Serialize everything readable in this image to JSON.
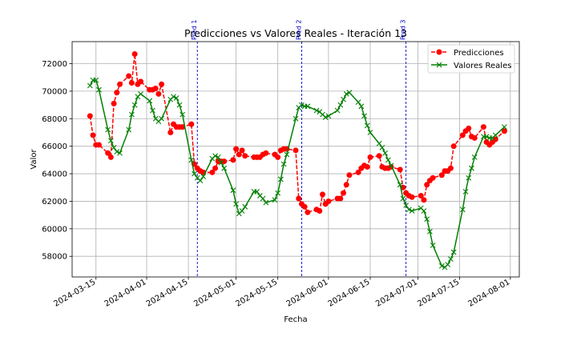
{
  "chart_data": {
    "type": "line",
    "title": "Predicciones vs Valores Reales - Iteración 13",
    "xlabel": "Fecha",
    "ylabel": "Valor",
    "x_axis": "date",
    "xlim": [
      "2024-03-07",
      "2024-08-04"
    ],
    "ylim": [
      56500,
      73600
    ],
    "grid": true,
    "legend_position": "top-right",
    "x_ticks": [
      "2024-03-15",
      "2024-04-01",
      "2024-04-15",
      "2024-05-01",
      "2024-05-15",
      "2024-06-01",
      "2024-06-15",
      "2024-07-01",
      "2024-07-15",
      "2024-08-01"
    ],
    "y_ticks": [
      58000,
      60000,
      62000,
      64000,
      66000,
      68000,
      70000,
      72000
    ],
    "vlines": [
      {
        "x": "2024-04-18",
        "label": "Pred 1"
      },
      {
        "x": "2024-05-23",
        "label": "Pred 2"
      },
      {
        "x": "2024-06-27",
        "label": "Pred 3"
      }
    ],
    "series": [
      {
        "name": "Predicciones",
        "color": "#ff0000",
        "marker": "circle",
        "linestyle": "dashed",
        "points": [
          [
            "2024-03-13",
            68200
          ],
          [
            "2024-03-14",
            66800
          ],
          [
            "2024-03-15",
            66100
          ],
          [
            "2024-03-16",
            66100
          ],
          [
            "2024-03-19",
            65500
          ],
          [
            "2024-03-20",
            65200
          ],
          [
            "2024-03-21",
            69100
          ],
          [
            "2024-03-22",
            69900
          ],
          [
            "2024-03-23",
            70500
          ],
          [
            "2024-03-26",
            71100
          ],
          [
            "2024-03-27",
            70600
          ],
          [
            "2024-03-28",
            72700
          ],
          [
            "2024-03-29",
            70500
          ],
          [
            "2024-03-30",
            70700
          ],
          [
            "2024-04-02",
            70100
          ],
          [
            "2024-04-03",
            70100
          ],
          [
            "2024-04-04",
            70200
          ],
          [
            "2024-04-05",
            69800
          ],
          [
            "2024-04-06",
            70500
          ],
          [
            "2024-04-09",
            67000
          ],
          [
            "2024-04-10",
            67600
          ],
          [
            "2024-04-11",
            67400
          ],
          [
            "2024-04-12",
            67400
          ],
          [
            "2024-04-13",
            67400
          ],
          [
            "2024-04-16",
            67600
          ],
          [
            "2024-04-17",
            64700
          ],
          [
            "2024-04-18",
            64400
          ],
          [
            "2024-04-19",
            64200
          ],
          [
            "2024-04-20",
            64100
          ],
          [
            "2024-04-23",
            64100
          ],
          [
            "2024-04-24",
            64400
          ],
          [
            "2024-04-25",
            64900
          ],
          [
            "2024-04-26",
            64900
          ],
          [
            "2024-04-27",
            64900
          ],
          [
            "2024-04-30",
            65000
          ],
          [
            "2024-05-01",
            65800
          ],
          [
            "2024-05-02",
            65400
          ],
          [
            "2024-05-03",
            65700
          ],
          [
            "2024-05-04",
            65300
          ],
          [
            "2024-05-07",
            65200
          ],
          [
            "2024-05-08",
            65200
          ],
          [
            "2024-05-09",
            65200
          ],
          [
            "2024-05-10",
            65400
          ],
          [
            "2024-05-11",
            65500
          ],
          [
            "2024-05-14",
            65400
          ],
          [
            "2024-05-15",
            65200
          ],
          [
            "2024-05-16",
            65700
          ],
          [
            "2024-05-17",
            65800
          ],
          [
            "2024-05-18",
            65800
          ],
          [
            "2024-05-21",
            65700
          ],
          [
            "2024-05-22",
            62200
          ],
          [
            "2024-05-23",
            61800
          ],
          [
            "2024-05-24",
            61600
          ],
          [
            "2024-05-25",
            61200
          ],
          [
            "2024-05-28",
            61400
          ],
          [
            "2024-05-29",
            61300
          ],
          [
            "2024-05-30",
            62500
          ],
          [
            "2024-05-31",
            61800
          ],
          [
            "2024-06-01",
            62000
          ],
          [
            "2024-06-04",
            62200
          ],
          [
            "2024-06-05",
            62200
          ],
          [
            "2024-06-06",
            62600
          ],
          [
            "2024-06-07",
            63200
          ],
          [
            "2024-06-08",
            63900
          ],
          [
            "2024-06-11",
            64100
          ],
          [
            "2024-06-12",
            64400
          ],
          [
            "2024-06-13",
            64600
          ],
          [
            "2024-06-14",
            64500
          ],
          [
            "2024-06-15",
            65200
          ],
          [
            "2024-06-18",
            65300
          ],
          [
            "2024-06-19",
            64500
          ],
          [
            "2024-06-20",
            64400
          ],
          [
            "2024-06-21",
            64400
          ],
          [
            "2024-06-22",
            64500
          ],
          [
            "2024-06-25",
            64300
          ],
          [
            "2024-06-26",
            63000
          ],
          [
            "2024-06-27",
            62600
          ],
          [
            "2024-06-28",
            62400
          ],
          [
            "2024-06-29",
            62300
          ],
          [
            "2024-07-02",
            62400
          ],
          [
            "2024-07-03",
            62100
          ],
          [
            "2024-07-04",
            63200
          ],
          [
            "2024-07-05",
            63500
          ],
          [
            "2024-07-06",
            63700
          ],
          [
            "2024-07-09",
            63900
          ],
          [
            "2024-07-10",
            64200
          ],
          [
            "2024-07-11",
            64200
          ],
          [
            "2024-07-12",
            64400
          ],
          [
            "2024-07-13",
            66000
          ],
          [
            "2024-07-16",
            66800
          ],
          [
            "2024-07-17",
            67100
          ],
          [
            "2024-07-18",
            67300
          ],
          [
            "2024-07-19",
            66700
          ],
          [
            "2024-07-20",
            66600
          ],
          [
            "2024-07-23",
            67400
          ],
          [
            "2024-07-24",
            66300
          ],
          [
            "2024-07-25",
            66100
          ],
          [
            "2024-07-26",
            66300
          ],
          [
            "2024-07-27",
            66500
          ],
          [
            "2024-07-30",
            67100
          ]
        ]
      },
      {
        "name": "Valores Reales",
        "color": "#008000",
        "marker": "x",
        "linestyle": "solid",
        "points": [
          [
            "2024-03-13",
            70400
          ],
          [
            "2024-03-14",
            70800
          ],
          [
            "2024-03-15",
            70800
          ],
          [
            "2024-03-16",
            70100
          ],
          [
            "2024-03-19",
            67200
          ],
          [
            "2024-03-20",
            66400
          ],
          [
            "2024-03-21",
            65900
          ],
          [
            "2024-03-22",
            65600
          ],
          [
            "2024-03-23",
            65500
          ],
          [
            "2024-03-26",
            67200
          ],
          [
            "2024-03-27",
            68300
          ],
          [
            "2024-03-28",
            69000
          ],
          [
            "2024-03-29",
            69600
          ],
          [
            "2024-03-30",
            69800
          ],
          [
            "2024-04-02",
            69300
          ],
          [
            "2024-04-03",
            68600
          ],
          [
            "2024-04-04",
            68000
          ],
          [
            "2024-04-05",
            67800
          ],
          [
            "2024-04-06",
            68000
          ],
          [
            "2024-04-09",
            69400
          ],
          [
            "2024-04-10",
            69600
          ],
          [
            "2024-04-11",
            69500
          ],
          [
            "2024-04-12",
            69000
          ],
          [
            "2024-04-13",
            68300
          ],
          [
            "2024-04-16",
            65000
          ],
          [
            "2024-04-17",
            64000
          ],
          [
            "2024-04-18",
            63700
          ],
          [
            "2024-04-19",
            63500
          ],
          [
            "2024-04-20",
            63800
          ],
          [
            "2024-04-23",
            65100
          ],
          [
            "2024-04-24",
            65300
          ],
          [
            "2024-04-25",
            65200
          ],
          [
            "2024-04-26",
            64800
          ],
          [
            "2024-04-27",
            64400
          ],
          [
            "2024-04-30",
            62800
          ],
          [
            "2024-05-01",
            61800
          ],
          [
            "2024-05-02",
            61100
          ],
          [
            "2024-05-03",
            61300
          ],
          [
            "2024-05-04",
            61600
          ],
          [
            "2024-05-07",
            62700
          ],
          [
            "2024-05-08",
            62700
          ],
          [
            "2024-05-09",
            62400
          ],
          [
            "2024-05-10",
            62200
          ],
          [
            "2024-05-11",
            61900
          ],
          [
            "2024-05-14",
            62100
          ],
          [
            "2024-05-15",
            62600
          ],
          [
            "2024-05-16",
            63600
          ],
          [
            "2024-05-17",
            64700
          ],
          [
            "2024-05-18",
            65400
          ],
          [
            "2024-05-21",
            68000
          ],
          [
            "2024-05-22",
            68800
          ],
          [
            "2024-05-23",
            69000
          ],
          [
            "2024-05-24",
            68900
          ],
          [
            "2024-05-25",
            68900
          ],
          [
            "2024-05-28",
            68600
          ],
          [
            "2024-05-29",
            68500
          ],
          [
            "2024-05-30",
            68300
          ],
          [
            "2024-05-31",
            68100
          ],
          [
            "2024-06-01",
            68200
          ],
          [
            "2024-06-04",
            68600
          ],
          [
            "2024-06-05",
            69000
          ],
          [
            "2024-06-06",
            69400
          ],
          [
            "2024-06-07",
            69800
          ],
          [
            "2024-06-08",
            69900
          ],
          [
            "2024-06-11",
            69200
          ],
          [
            "2024-06-12",
            68900
          ],
          [
            "2024-06-13",
            68200
          ],
          [
            "2024-06-14",
            67500
          ],
          [
            "2024-06-15",
            67000
          ],
          [
            "2024-06-18",
            66200
          ],
          [
            "2024-06-19",
            65900
          ],
          [
            "2024-06-20",
            65500
          ],
          [
            "2024-06-21",
            65000
          ],
          [
            "2024-06-22",
            64600
          ],
          [
            "2024-06-25",
            63200
          ],
          [
            "2024-06-26",
            62200
          ],
          [
            "2024-06-27",
            61700
          ],
          [
            "2024-06-28",
            61400
          ],
          [
            "2024-06-29",
            61300
          ],
          [
            "2024-07-02",
            61500
          ],
          [
            "2024-07-03",
            61300
          ],
          [
            "2024-07-04",
            60700
          ],
          [
            "2024-07-05",
            59800
          ],
          [
            "2024-07-06",
            58800
          ],
          [
            "2024-07-09",
            57300
          ],
          [
            "2024-07-10",
            57200
          ],
          [
            "2024-07-11",
            57400
          ],
          [
            "2024-07-12",
            57800
          ],
          [
            "2024-07-13",
            58300
          ],
          [
            "2024-07-16",
            61400
          ],
          [
            "2024-07-17",
            62700
          ],
          [
            "2024-07-18",
            63700
          ],
          [
            "2024-07-19",
            64400
          ],
          [
            "2024-07-20",
            65200
          ],
          [
            "2024-07-23",
            66700
          ],
          [
            "2024-07-24",
            66700
          ],
          [
            "2024-07-25",
            66600
          ],
          [
            "2024-07-26",
            66600
          ],
          [
            "2024-07-27",
            66800
          ],
          [
            "2024-07-30",
            67400
          ]
        ]
      }
    ]
  }
}
